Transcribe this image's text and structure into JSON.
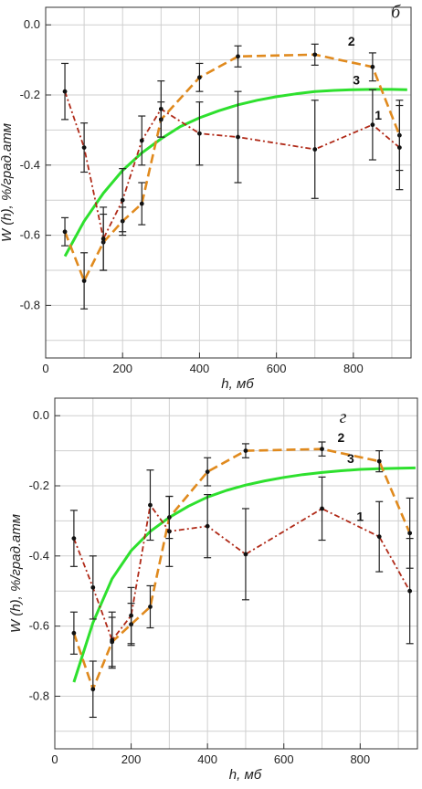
{
  "chart_data": [
    {
      "type": "line",
      "panel_label": "б",
      "xlabel": "h, мб",
      "ylabel": "W (h), %/град.атм",
      "xlim": [
        0,
        950
      ],
      "ylim": [
        -0.95,
        0.05
      ],
      "xticks": [
        "0",
        "200",
        "400",
        "600",
        "800"
      ],
      "xtick_values": [
        0,
        200,
        400,
        600,
        800
      ],
      "yticks": [
        "0.0",
        "-0.2",
        "-0.4",
        "-0.6",
        "-0.8"
      ],
      "ytick_values": [
        0.0,
        -0.2,
        -0.4,
        -0.6,
        -0.8
      ],
      "grid": true,
      "series": [
        {
          "name": "1",
          "color": "#b02a18",
          "style": "dash-dot",
          "x": [
            50,
            100,
            150,
            200,
            250,
            300,
            400,
            500,
            700,
            850,
            920
          ],
          "y": [
            -0.19,
            -0.35,
            -0.61,
            -0.5,
            -0.33,
            -0.24,
            -0.31,
            -0.32,
            -0.355,
            -0.285,
            -0.35
          ],
          "err": [
            0.08,
            0.07,
            0.09,
            0.09,
            0.07,
            0.08,
            0.09,
            0.13,
            0.14,
            0.1,
            0.12
          ]
        },
        {
          "name": "2",
          "color": "#e08a1e",
          "style": "dashed",
          "x": [
            50,
            100,
            150,
            200,
            250,
            300,
            400,
            500,
            700,
            850,
            920
          ],
          "y": [
            -0.59,
            -0.73,
            -0.62,
            -0.56,
            -0.51,
            -0.27,
            -0.15,
            -0.09,
            -0.085,
            -0.12,
            -0.315
          ],
          "err": [
            0.04,
            0.08,
            0.08,
            0.04,
            0.06,
            0.05,
            0.04,
            0.03,
            0.03,
            0.04,
            0.1
          ]
        },
        {
          "name": "3",
          "color": "#2ee02e",
          "style": "solid",
          "x": [
            50,
            100,
            150,
            200,
            250,
            300,
            350,
            400,
            450,
            500,
            550,
            600,
            650,
            700,
            750,
            800,
            850,
            900,
            940
          ],
          "y": [
            -0.66,
            -0.56,
            -0.48,
            -0.415,
            -0.365,
            -0.325,
            -0.29,
            -0.265,
            -0.245,
            -0.228,
            -0.215,
            -0.205,
            -0.197,
            -0.19,
            -0.187,
            -0.185,
            -0.184,
            -0.184,
            -0.185
          ]
        }
      ]
    },
    {
      "type": "line",
      "panel_label": "г",
      "xlabel": "h, мб",
      "ylabel": "W (h), %/град.атм",
      "xlim": [
        0,
        950
      ],
      "ylim": [
        -0.95,
        0.05
      ],
      "xticks": [
        "0",
        "200",
        "400",
        "600",
        "800"
      ],
      "xtick_values": [
        0,
        200,
        400,
        600,
        800
      ],
      "yticks": [
        "0.0",
        "-0.2",
        "-0.4",
        "-0.6",
        "-0.8"
      ],
      "ytick_values": [
        0.0,
        -0.2,
        -0.4,
        -0.6,
        -0.8
      ],
      "grid": true,
      "series": [
        {
          "name": "1",
          "color": "#b02a18",
          "style": "dash-dot",
          "x": [
            50,
            100,
            150,
            200,
            250,
            300,
            400,
            500,
            700,
            850,
            930
          ],
          "y": [
            -0.35,
            -0.49,
            -0.64,
            -0.57,
            -0.255,
            -0.33,
            -0.315,
            -0.395,
            -0.265,
            -0.345,
            -0.5
          ],
          "err": [
            0.08,
            0.09,
            0.08,
            0.08,
            0.1,
            0.1,
            0.09,
            0.13,
            0.09,
            0.1,
            0.15
          ]
        },
        {
          "name": "2",
          "color": "#e08a1e",
          "style": "dashed",
          "x": [
            50,
            100,
            150,
            200,
            250,
            300,
            400,
            500,
            700,
            850,
            930
          ],
          "y": [
            -0.62,
            -0.78,
            -0.645,
            -0.595,
            -0.545,
            -0.29,
            -0.16,
            -0.1,
            -0.095,
            -0.13,
            -0.335
          ],
          "err": [
            0.06,
            0.08,
            0.07,
            0.06,
            0.06,
            0.06,
            0.04,
            0.02,
            0.02,
            0.03,
            0.1
          ]
        },
        {
          "name": "3",
          "color": "#2ee02e",
          "style": "solid",
          "x": [
            50,
            100,
            150,
            200,
            250,
            300,
            350,
            400,
            450,
            500,
            550,
            600,
            650,
            700,
            750,
            800,
            850,
            900,
            945
          ],
          "y": [
            -0.76,
            -0.59,
            -0.465,
            -0.385,
            -0.33,
            -0.29,
            -0.258,
            -0.232,
            -0.213,
            -0.198,
            -0.186,
            -0.176,
            -0.168,
            -0.162,
            -0.157,
            -0.153,
            -0.151,
            -0.15,
            -0.149
          ]
        }
      ]
    }
  ]
}
